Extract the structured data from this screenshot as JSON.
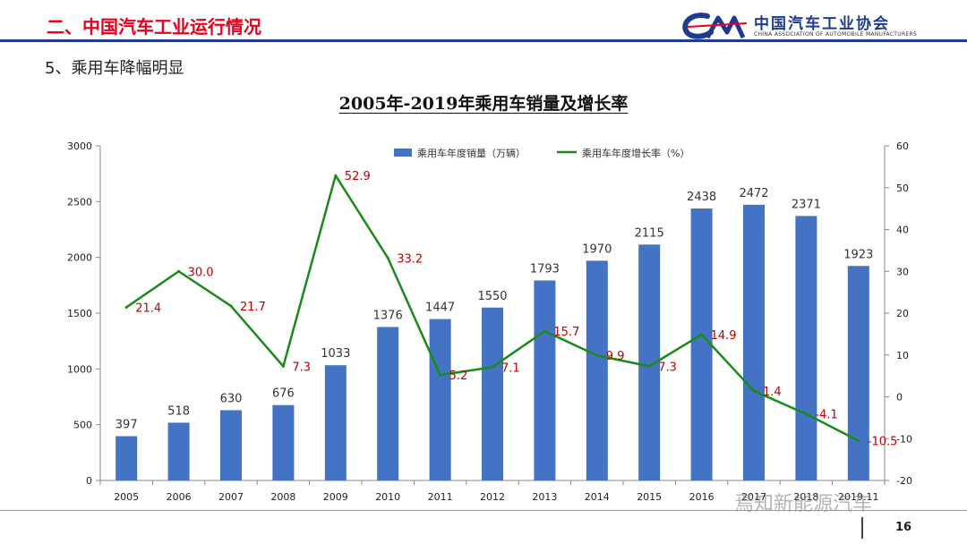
{
  "header": {
    "section_title": "二、中国汽车工业运行情况",
    "logo_mark": "CAM",
    "logo_cn": "中国汽车工业协会",
    "logo_en": "CHINA ASSOCIATION OF AUTOMOBILE MANUFACTURERS"
  },
  "subtitle": "5、乘用车降幅明显",
  "footer": {
    "page_number": "16",
    "watermark": "焉知新能源汽车"
  },
  "colors": {
    "bar": "#4472c4",
    "line": "#1a8a1a",
    "line_label": "#c00000",
    "header_red": "#e8001c",
    "header_blue": "#1f3b8f"
  },
  "chart_data": {
    "type": "bar+line",
    "title": "2005年-2019年乘用车销量及增长率",
    "categories": [
      "2005",
      "2006",
      "2007",
      "2008",
      "2009",
      "2010",
      "2011",
      "2012",
      "2013",
      "2014",
      "2015",
      "2016",
      "2017",
      "2018",
      "2019.11"
    ],
    "category_labels": [
      "2005",
      "2006",
      "2007",
      "2008",
      "2009",
      "2010",
      "2011",
      "2012",
      "2013",
      "2014",
      "2015",
      "2016",
      "2017",
      "2018",
      "2019.11"
    ],
    "series": [
      {
        "name": "乘用车年度销量（万辆）",
        "type": "bar",
        "axis": "left",
        "values": [
          397,
          518,
          630,
          676,
          1033,
          1376,
          1447,
          1550,
          1793,
          1970,
          2115,
          2438,
          2472,
          2371,
          1923
        ],
        "labels": [
          "397",
          "518",
          "630",
          "676",
          "1033",
          "1376",
          "1447",
          "1550",
          "1793",
          "1970",
          "2115",
          "2438",
          "2472",
          "2371",
          "1923"
        ]
      },
      {
        "name": "乘用车年度增长率（%）",
        "type": "line",
        "axis": "right",
        "values": [
          21.4,
          30.0,
          21.7,
          7.3,
          52.9,
          33.2,
          5.2,
          7.1,
          15.7,
          9.9,
          7.3,
          14.9,
          1.4,
          -4.1,
          -10.5
        ],
        "labels": [
          "21.4",
          "30.0",
          "21.7",
          "7.3",
          "52.9",
          "33.2",
          "5.2",
          "7.1",
          "15.7",
          "9.9",
          "7.3",
          "14.9",
          "1.4",
          "-4.1",
          "-10.5"
        ]
      }
    ],
    "y_left": {
      "min": 0,
      "max": 3000,
      "ticks": [
        "0",
        "500",
        "1000",
        "1500",
        "2000",
        "2500",
        "3000"
      ]
    },
    "y_right": {
      "min": -20,
      "max": 60,
      "ticks": [
        "-20",
        "-10",
        "0",
        "10",
        "20",
        "30",
        "40",
        "50",
        "60"
      ]
    },
    "legend": "top-center",
    "grid": false
  }
}
